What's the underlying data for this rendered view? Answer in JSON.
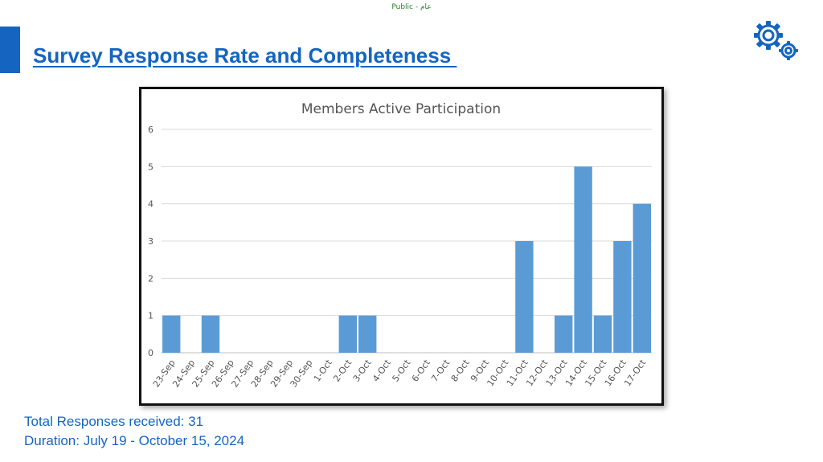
{
  "header": {
    "classification": "Public - عام",
    "title": "Survey Response Rate and Completeness "
  },
  "icons": {
    "settings": "gears-icon"
  },
  "colors": {
    "accent": "#1565c0",
    "bar": "#5b9bd5"
  },
  "chart_data": {
    "type": "bar",
    "title": "Members Active Participation",
    "categories": [
      "23-Sep",
      "24-Sep",
      "25-Sep",
      "26-Sep",
      "27-Sep",
      "28-Sep",
      "29-Sep",
      "30-Sep",
      "1-Oct",
      "2-Oct",
      "3-Oct",
      "4-Oct",
      "5-Oct",
      "6-Oct",
      "7-Oct",
      "8-Oct",
      "9-Oct",
      "10-Oct",
      "11-Oct",
      "12-Oct",
      "13-Oct",
      "14-Oct",
      "15-Oct",
      "16-Oct",
      "17-Oct"
    ],
    "values": [
      1,
      0,
      1,
      0,
      0,
      0,
      0,
      0,
      0,
      1,
      1,
      0,
      0,
      0,
      0,
      0,
      0,
      0,
      3,
      0,
      1,
      5,
      1,
      3,
      4
    ],
    "ylim": [
      0,
      6
    ],
    "yticks": [
      "0",
      "1",
      "2",
      "3",
      "4",
      "5",
      "6"
    ],
    "grid": true
  },
  "footer": {
    "responses": "Total Responses received: 31",
    "duration": "Duration: July 19 - October 15, 2024"
  }
}
